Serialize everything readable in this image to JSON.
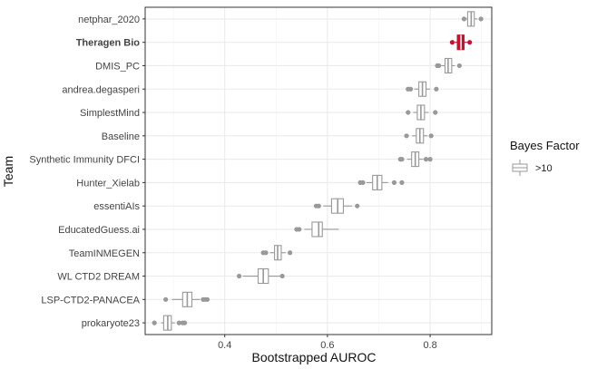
{
  "chart_data": {
    "type": "boxplot",
    "orientation": "horizontal",
    "xlabel": "Bootstrapped AUROC",
    "ylabel": "Team",
    "xlim": [
      0.245,
      0.92
    ],
    "xticks": [
      0.4,
      0.6,
      0.8
    ],
    "xtick_labels": [
      "0.4",
      "0.6",
      "0.8"
    ],
    "grid": true,
    "legend": {
      "title": "Bayes Factor",
      "label": ">10",
      "position": "right"
    },
    "highlight_team": "Theragen Bio",
    "colors": {
      "default_box": "#999999",
      "highlight_box": "#c8102e",
      "panel_bg": "#ffffff",
      "grid": "#ebebeb",
      "panel_border": "#333333"
    },
    "teams": [
      {
        "name": "netphar_2020",
        "whisker_low": 0.87,
        "q1": 0.873,
        "median": 0.88,
        "q3": 0.886,
        "whisker_high": 0.892,
        "outliers": [
          0.866,
          0.899
        ]
      },
      {
        "name": "Theragen Bio",
        "whisker_low": 0.848,
        "q1": 0.853,
        "median": 0.86,
        "q3": 0.866,
        "whisker_high": 0.872,
        "outliers": [
          0.843,
          0.877
        ]
      },
      {
        "name": "DMIS_PC",
        "whisker_low": 0.822,
        "q1": 0.829,
        "median": 0.835,
        "q3": 0.842,
        "whisker_high": 0.848,
        "outliers": [
          0.814,
          0.817,
          0.857
        ]
      },
      {
        "name": "andrea.degasperi",
        "whisker_low": 0.769,
        "q1": 0.778,
        "median": 0.785,
        "q3": 0.792,
        "whisker_high": 0.8,
        "outliers": [
          0.757,
          0.762,
          0.812
        ]
      },
      {
        "name": "SimplestMind",
        "whisker_low": 0.767,
        "q1": 0.775,
        "median": 0.782,
        "q3": 0.789,
        "whisker_high": 0.797,
        "outliers": [
          0.757,
          0.81
        ]
      },
      {
        "name": "Baseline",
        "whisker_low": 0.765,
        "q1": 0.773,
        "median": 0.78,
        "q3": 0.787,
        "whisker_high": 0.795,
        "outliers": [
          0.754,
          0.802
        ]
      },
      {
        "name": "Synthetic Immunity DFCI",
        "whisker_low": 0.755,
        "q1": 0.764,
        "median": 0.771,
        "q3": 0.778,
        "whisker_high": 0.787,
        "outliers": [
          0.742,
          0.745,
          0.792,
          0.8
        ]
      },
      {
        "name": "Hunter_Xielab",
        "whisker_low": 0.676,
        "q1": 0.688,
        "median": 0.697,
        "q3": 0.706,
        "whisker_high": 0.718,
        "outliers": [
          0.664,
          0.669,
          0.73,
          0.745
        ]
      },
      {
        "name": "essentiAIs",
        "whisker_low": 0.592,
        "q1": 0.608,
        "median": 0.62,
        "q3": 0.631,
        "whisker_high": 0.648,
        "outliers": [
          0.578,
          0.583,
          0.658
        ]
      },
      {
        "name": "EducatedGuess.ai",
        "whisker_low": 0.555,
        "q1": 0.57,
        "median": 0.583,
        "q3": 0.59,
        "whisker_high": 0.622,
        "outliers": [
          0.54,
          0.545
        ]
      },
      {
        "name": "TeamINMEGEN",
        "whisker_low": 0.488,
        "q1": 0.497,
        "median": 0.503,
        "q3": 0.51,
        "whisker_high": 0.519,
        "outliers": [
          0.475,
          0.48,
          0.527
        ]
      },
      {
        "name": "WL CTD2 DREAM",
        "whisker_low": 0.435,
        "q1": 0.465,
        "median": 0.475,
        "q3": 0.485,
        "whisker_high": 0.513,
        "outliers": [
          0.428,
          0.512
        ]
      },
      {
        "name": "LSP-CTD2-PANACEA",
        "whisker_low": 0.297,
        "q1": 0.318,
        "median": 0.327,
        "q3": 0.336,
        "whisker_high": 0.352,
        "outliers": [
          0.285,
          0.358,
          0.362,
          0.366
        ]
      },
      {
        "name": "prokaryote23",
        "whisker_low": 0.276,
        "q1": 0.281,
        "median": 0.289,
        "q3": 0.296,
        "whisker_high": 0.303,
        "outliers": [
          0.263,
          0.311,
          0.318,
          0.322
        ]
      }
    ]
  }
}
